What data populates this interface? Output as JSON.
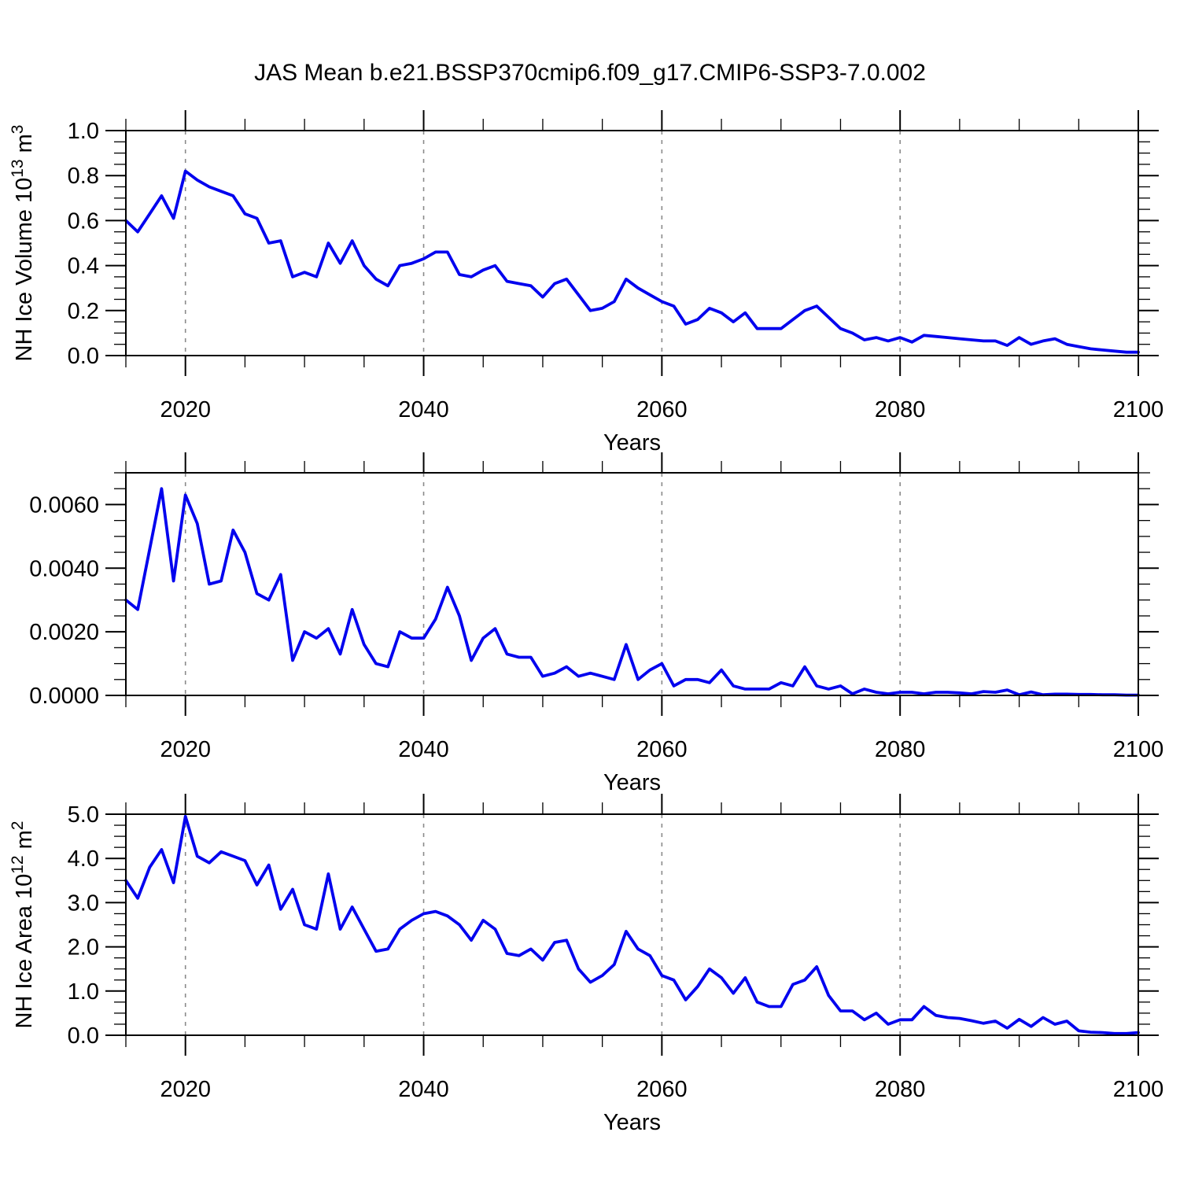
{
  "figure": {
    "title": "JAS Mean b.e21.BSSP370cmip6.f09_g17.CMIP6-SSP3-7.0.002",
    "background": "#ffffff",
    "line_color": "#0202ee",
    "grid_color": "#8a8a8a",
    "frame_color": "#000000"
  },
  "chart_data": [
    {
      "type": "line",
      "panel": "nh-ice-volume",
      "xlabel": "Years",
      "ylabel": "NH Ice Volume 10^13 m^3",
      "ylabel_rich": [
        [
          "NH Ice Volume 10",
          false
        ],
        [
          "13",
          true
        ],
        [
          " m",
          false
        ],
        [
          "3",
          true
        ]
      ],
      "xlim": [
        2015,
        2100
      ],
      "ylim": [
        0,
        1.0
      ],
      "x_start": 2015,
      "x_step": 1,
      "x_tick_values": [
        2020,
        2040,
        2060,
        2080,
        2100
      ],
      "x_tick_labels": [
        "2020",
        "2040",
        "2060",
        "2080",
        "2100"
      ],
      "x_minor_step": 5,
      "grid_x": [
        2020,
        2040,
        2060,
        2080
      ],
      "y_tick_values": [
        0.0,
        0.2,
        0.4,
        0.6,
        0.8,
        1.0
      ],
      "y_tick_labels": [
        "0.0",
        "0.2",
        "0.4",
        "0.6",
        "0.8",
        "1.0"
      ],
      "y_minor_step": 0.05,
      "values": [
        0.6,
        0.55,
        0.63,
        0.71,
        0.61,
        0.82,
        0.78,
        0.75,
        0.73,
        0.71,
        0.63,
        0.61,
        0.5,
        0.51,
        0.35,
        0.37,
        0.35,
        0.5,
        0.41,
        0.51,
        0.4,
        0.34,
        0.31,
        0.4,
        0.41,
        0.43,
        0.46,
        0.46,
        0.36,
        0.35,
        0.38,
        0.4,
        0.33,
        0.32,
        0.31,
        0.26,
        0.32,
        0.34,
        0.27,
        0.2,
        0.21,
        0.24,
        0.34,
        0.3,
        0.27,
        0.24,
        0.22,
        0.14,
        0.16,
        0.21,
        0.19,
        0.15,
        0.19,
        0.12,
        0.12,
        0.12,
        0.16,
        0.2,
        0.22,
        0.17,
        0.12,
        0.1,
        0.07,
        0.08,
        0.065,
        0.08,
        0.06,
        0.09,
        0.085,
        0.08,
        0.075,
        0.07,
        0.065,
        0.065,
        0.045,
        0.08,
        0.05,
        0.065,
        0.075,
        0.05,
        0.04,
        0.03,
        0.025,
        0.02,
        0.015,
        0.015
      ]
    },
    {
      "type": "line",
      "panel": "middle-series",
      "xlabel": "Years",
      "ylabel": "",
      "ylabel_rich": null,
      "xlim": [
        2015,
        2100
      ],
      "ylim": [
        0,
        0.007
      ],
      "x_start": 2015,
      "x_step": 1,
      "x_tick_values": [
        2020,
        2040,
        2060,
        2080,
        2100
      ],
      "x_tick_labels": [
        "2020",
        "2040",
        "2060",
        "2080",
        "2100"
      ],
      "x_minor_step": 5,
      "grid_x": [
        2020,
        2040,
        2060,
        2080
      ],
      "y_tick_values": [
        0.0,
        0.002,
        0.004,
        0.006
      ],
      "y_tick_labels": [
        "0.0000",
        "0.0020",
        "0.0040",
        "0.0060"
      ],
      "y_minor_step": 0.0005,
      "values": [
        0.003,
        0.0027,
        0.0046,
        0.0065,
        0.0036,
        0.0063,
        0.0054,
        0.0035,
        0.0036,
        0.0052,
        0.0045,
        0.0032,
        0.003,
        0.0038,
        0.0011,
        0.002,
        0.0018,
        0.0021,
        0.0013,
        0.0027,
        0.0016,
        0.001,
        0.0009,
        0.002,
        0.0018,
        0.0018,
        0.0024,
        0.0034,
        0.0025,
        0.0011,
        0.0018,
        0.0021,
        0.0013,
        0.0012,
        0.0012,
        0.0006,
        0.0007,
        0.0009,
        0.0006,
        0.0007,
        0.0006,
        0.0005,
        0.0016,
        0.0005,
        0.0008,
        0.001,
        0.0003,
        0.0005,
        0.0005,
        0.0004,
        0.0008,
        0.0003,
        0.0002,
        0.0002,
        0.0002,
        0.0004,
        0.0003,
        0.0009,
        0.0003,
        0.0002,
        0.0003,
        5e-05,
        0.0002,
        0.0001,
        5e-05,
        0.0001,
        0.0001,
        5e-05,
        0.0001,
        0.0001,
        8e-05,
        5e-05,
        0.00012,
        0.0001,
        0.00017,
        2e-05,
        0.00011,
        2e-05,
        4e-05,
        4e-05,
        3e-05,
        3e-05,
        2e-05,
        2e-05,
        1e-05,
        1e-05
      ]
    },
    {
      "type": "line",
      "panel": "nh-ice-area",
      "xlabel": "Years",
      "ylabel": "NH Ice Area 10^12 m^2",
      "ylabel_rich": [
        [
          "NH Ice Area 10",
          false
        ],
        [
          "12",
          true
        ],
        [
          " m",
          false
        ],
        [
          "2",
          true
        ]
      ],
      "xlim": [
        2015,
        2100
      ],
      "ylim": [
        0,
        5.0
      ],
      "x_start": 2015,
      "x_step": 1,
      "x_tick_values": [
        2020,
        2040,
        2060,
        2080,
        2100
      ],
      "x_tick_labels": [
        "2020",
        "2040",
        "2060",
        "2080",
        "2100"
      ],
      "x_minor_step": 5,
      "grid_x": [
        2020,
        2040,
        2060,
        2080
      ],
      "y_tick_values": [
        0.0,
        1.0,
        2.0,
        3.0,
        4.0,
        5.0
      ],
      "y_tick_labels": [
        "0.0",
        "1.0",
        "2.0",
        "3.0",
        "4.0",
        "5.0"
      ],
      "y_minor_step": 0.25,
      "values": [
        3.5,
        3.1,
        3.8,
        4.2,
        3.45,
        4.95,
        4.05,
        3.9,
        4.15,
        4.05,
        3.95,
        3.4,
        3.85,
        2.85,
        3.3,
        2.5,
        2.4,
        3.65,
        2.4,
        2.9,
        2.4,
        1.9,
        1.95,
        2.4,
        2.6,
        2.75,
        2.8,
        2.7,
        2.5,
        2.15,
        2.6,
        2.4,
        1.85,
        1.8,
        1.95,
        1.7,
        2.1,
        2.15,
        1.5,
        1.2,
        1.35,
        1.6,
        2.35,
        1.95,
        1.8,
        1.35,
        1.25,
        0.8,
        1.1,
        1.5,
        1.3,
        0.95,
        1.3,
        0.75,
        0.65,
        0.65,
        1.15,
        1.25,
        1.55,
        0.9,
        0.55,
        0.55,
        0.35,
        0.5,
        0.25,
        0.35,
        0.35,
        0.65,
        0.45,
        0.4,
        0.38,
        0.33,
        0.27,
        0.32,
        0.16,
        0.36,
        0.2,
        0.4,
        0.25,
        0.32,
        0.1,
        0.07,
        0.06,
        0.04,
        0.04,
        0.06
      ]
    }
  ]
}
